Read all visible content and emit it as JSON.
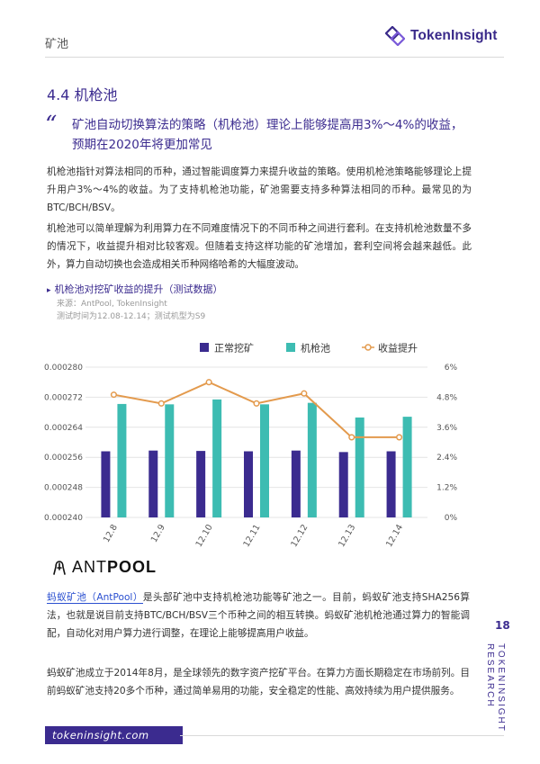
{
  "header": {
    "label": "矿池",
    "logo_text": "TokenInsight"
  },
  "section": {
    "title": "4.4 机枪池"
  },
  "quote": {
    "mark": "“",
    "text": "矿池自动切换算法的策略（机枪池）理论上能够提高用3%～4%的收益，预期在2020年将更加常见"
  },
  "paragraphs": {
    "p1": "机枪池指针对算法相同的币种，通过智能调度算力来提升收益的策略。使用机枪池策略能够理论上提升用户3%～4%的收益。为了支持机枪池功能，矿池需要支持多种算法相同的币种。最常见的为BTC/BCH/BSV。",
    "p2": "机枪池可以简单理解为利用算力在不同难度情况下的不同币种之间进行套利。在支持机枪池数量不多的情况下，收益提升相对比较客观。但随着支持这样功能的矿池增加，套利空间将会越来越低。此外，算力自动切换也会造成相关币种网络哈希的大幅度波动。",
    "p3_link": "蚂蚁矿池（AntPool）",
    "p3_rest": "是头部矿池中支持机枪池功能等矿池之一。目前，蚂蚁矿池支持SHA256算法，也就是说目前支持BTC/BCH/BSV三个币种之间的相互转换。蚂蚁矿池机枪池通过算力的智能调配，自动化对用户算力进行调整，在理论上能够提高用户收益。",
    "p4": "蚂蚁矿池成立于2014年8月，是全球领先的数字资产挖矿平台。在算力方面长期稳定在市场前列。目前蚂蚁矿池支持20多个币种，通过简单易用的功能，安全稳定的性能、高效持续为用户提供服务。"
  },
  "chart_meta": {
    "title_marker": "▸",
    "title": "机枪池对挖矿收益的提升（测试数据）",
    "source_line1": "来源：AntPool, TokenInsight",
    "source_line2": "测试时间为12.08-12.14；测试机型为S9"
  },
  "chart_data": {
    "type": "bar",
    "categories": [
      "12.8",
      "12.9",
      "12.10",
      "12.11",
      "12.12",
      "12.13",
      "12.14"
    ],
    "series": [
      {
        "name": "正常挖矿",
        "type": "bar",
        "axis": "left",
        "color": "#3b2b8f",
        "values": [
          0.0002576,
          0.0002578,
          0.0002577,
          0.0002576,
          0.0002578,
          0.0002574,
          0.0002576
        ]
      },
      {
        "name": "机枪池",
        "type": "bar",
        "axis": "left",
        "color": "#3dbcb2",
        "values": [
          0.0002702,
          0.0002701,
          0.0002714,
          0.0002701,
          0.0002705,
          0.0002666,
          0.0002668
        ]
      },
      {
        "name": "收益提升",
        "type": "line",
        "axis": "right",
        "color": "#e39a4d",
        "values": [
          0.049,
          0.0455,
          0.054,
          0.0455,
          0.0495,
          0.032,
          0.032
        ]
      }
    ],
    "y_left": {
      "min": 0.00024,
      "max": 0.00028,
      "ticks": [
        "0.000240",
        "0.000248",
        "0.000256",
        "0.000264",
        "0.000272",
        "0.000280"
      ]
    },
    "y_right": {
      "min": 0,
      "max": 0.06,
      "ticks": [
        "0%",
        "1.2%",
        "2.4%",
        "3.6%",
        "4.8%",
        "6%"
      ]
    },
    "grid": true,
    "legend": "top"
  },
  "antpool_logo": {
    "text_light": "ANT",
    "text_bold": "POOL"
  },
  "page_number": "18",
  "side_text": {
    "line1": "TOKENINSIGHT",
    "line2": "RESEARCH"
  },
  "footer": {
    "url": "tokeninsight.com"
  }
}
